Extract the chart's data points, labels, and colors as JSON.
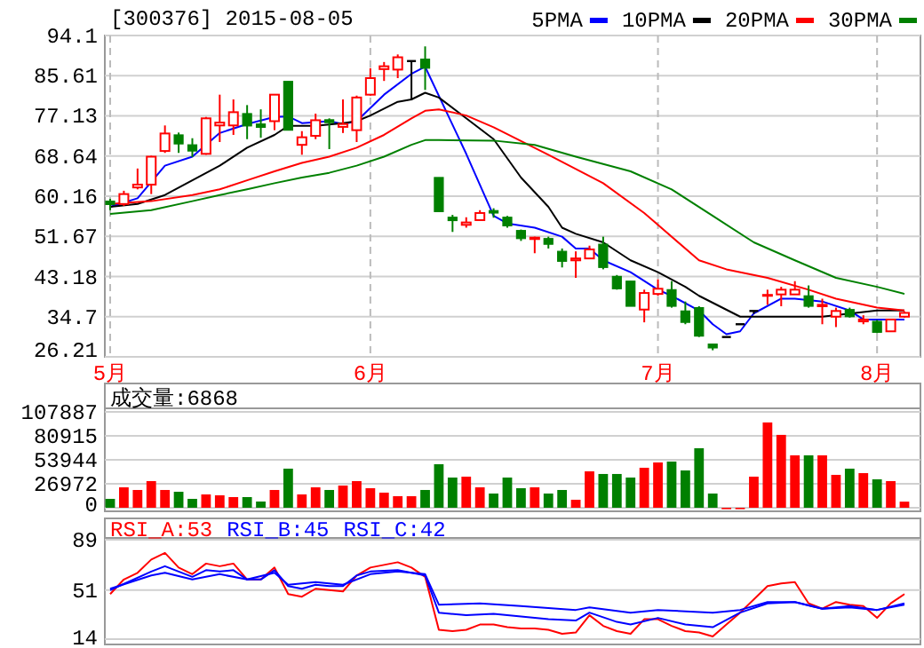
{
  "chart_data": [
    {
      "type": "candlestick",
      "title": "[300376] 2015-08-05",
      "categories": [
        "5月",
        null,
        null,
        null,
        null,
        null,
        null,
        null,
        null,
        null,
        null,
        null,
        null,
        null,
        null,
        null,
        null,
        null,
        null,
        "6月",
        null,
        null,
        null,
        null,
        null,
        null,
        null,
        null,
        null,
        null,
        null,
        null,
        null,
        null,
        null,
        null,
        null,
        null,
        null,
        null,
        "7月",
        null,
        null,
        null,
        null,
        null,
        null,
        null,
        null,
        null,
        null,
        null,
        null,
        null,
        null,
        null,
        "8月",
        null,
        null
      ],
      "ohlc": [
        [
          59.1,
          59.6,
          57.2,
          58.4
        ],
        [
          58.5,
          61.3,
          58.1,
          60.6
        ],
        [
          62.0,
          66.0,
          61.6,
          62.6
        ],
        [
          62.6,
          68.7,
          60.6,
          68.5
        ],
        [
          69.7,
          75.1,
          69.3,
          73.4
        ],
        [
          73.1,
          73.6,
          69.3,
          71.2
        ],
        [
          71.0,
          72.4,
          68.4,
          69.7
        ],
        [
          69.1,
          76.9,
          68.9,
          76.6
        ],
        [
          75.1,
          81.6,
          71.6,
          75.7
        ],
        [
          75.1,
          80.6,
          73.1,
          77.9
        ],
        [
          77.6,
          79.4,
          72.2,
          75.0
        ],
        [
          75.4,
          78.5,
          72.5,
          74.7
        ],
        [
          76.0,
          81.6,
          74.1,
          81.6
        ],
        [
          84.4,
          84.4,
          74.1,
          74.1
        ],
        [
          71.0,
          73.9,
          68.9,
          72.6
        ],
        [
          72.9,
          77.6,
          72.2,
          76.2
        ],
        [
          76.3,
          76.6,
          70.1,
          75.7
        ],
        [
          74.8,
          80.6,
          73.5,
          75.4
        ],
        [
          74.1,
          81.4,
          71.6,
          81.0
        ],
        [
          81.6,
          87.2,
          81.4,
          85.1
        ],
        [
          87.0,
          88.5,
          84.5,
          87.6
        ],
        [
          86.9,
          90.1,
          85.1,
          89.5
        ],
        [
          88.7,
          88.7,
          80.4,
          88.7
        ],
        [
          89.1,
          91.8,
          82.6,
          87.2
        ],
        [
          64.1,
          64.1,
          56.9,
          56.9
        ],
        [
          55.7,
          56.2,
          52.6,
          55.0
        ],
        [
          54.1,
          55.7,
          53.5,
          54.6
        ],
        [
          55.1,
          57.2,
          55.1,
          56.6
        ],
        [
          57.1,
          57.6,
          55.6,
          56.6
        ],
        [
          55.7,
          56.0,
          53.5,
          53.9
        ],
        [
          52.9,
          53.1,
          50.7,
          51.2
        ],
        [
          51.1,
          51.6,
          48.1,
          51.4
        ],
        [
          51.2,
          51.6,
          49.1,
          50.0
        ],
        [
          48.5,
          49.1,
          45.1,
          46.4
        ],
        [
          46.6,
          48.5,
          42.9,
          47.0
        ],
        [
          47.0,
          49.7,
          47.0,
          48.9
        ],
        [
          50.0,
          51.6,
          44.7,
          45.1
        ],
        [
          43.2,
          43.5,
          40.4,
          40.6
        ],
        [
          42.2,
          42.2,
          36.9,
          36.9
        ],
        [
          36.2,
          40.4,
          33.5,
          39.7
        ],
        [
          39.5,
          42.6,
          39.1,
          40.6
        ],
        [
          40.4,
          42.2,
          36.6,
          36.9
        ],
        [
          35.9,
          37.9,
          33.1,
          33.5
        ],
        [
          36.6,
          36.9,
          30.4,
          30.6
        ],
        [
          28.9,
          28.9,
          27.6,
          28.1
        ],
        [
          30.4,
          30.4,
          30.4,
          30.4
        ],
        [
          33.1,
          33.1,
          33.1,
          33.1
        ],
        [
          35.9,
          35.9,
          35.3,
          35.9
        ],
        [
          39.1,
          40.4,
          37.2,
          39.3
        ],
        [
          39.4,
          41.0,
          36.9,
          40.4
        ],
        [
          39.4,
          42.2,
          39.4,
          40.4
        ],
        [
          39.1,
          41.3,
          36.6,
          36.9
        ],
        [
          36.9,
          38.5,
          33.1,
          37.2
        ],
        [
          34.7,
          36.6,
          32.5,
          35.9
        ],
        [
          36.2,
          36.6,
          34.5,
          34.7
        ],
        [
          33.7,
          35.0,
          33.1,
          34.1
        ],
        [
          33.7,
          34.0,
          31.2,
          31.4
        ],
        [
          31.6,
          34.1,
          31.6,
          34.1
        ],
        [
          34.7,
          35.8,
          34.5,
          35.5
        ]
      ],
      "colors": [
        "#008000",
        "#ff0000",
        "#ff0000",
        "#ff0000",
        "#ff0000",
        "#008000",
        "#008000",
        "#ff0000",
        "#ff0000",
        "#ff0000",
        "#008000",
        "#008000",
        "#ff0000",
        "#008000",
        "#ff0000",
        "#ff0000",
        "#008000",
        "#ff0000",
        "#ff0000",
        "#ff0000",
        "#ff0000",
        "#ff0000",
        "#000000",
        "#008000",
        "#008000",
        "#008000",
        "#ff0000",
        "#ff0000",
        "#008000",
        "#008000",
        "#008000",
        "#ff0000",
        "#008000",
        "#008000",
        "#ff0000",
        "#ff0000",
        "#008000",
        "#008000",
        "#008000",
        "#ff0000",
        "#ff0000",
        "#008000",
        "#008000",
        "#008000",
        "#008000",
        "#000000",
        "#000000",
        "#000000",
        "#ff0000",
        "#ff0000",
        "#ff0000",
        "#008000",
        "#ff0000",
        "#ff0000",
        "#008000",
        "#ff0000",
        "#008000",
        "#ff0000",
        "#ff0000"
      ],
      "series": [
        {
          "name": "5PMA",
          "type": "line",
          "color": "#0000ff",
          "values": [
            57.9,
            null,
            59.7,
            null,
            66.6,
            null,
            68.5,
            null,
            73.5,
            null,
            75.4,
            null,
            76.9,
            77.0,
            75.6,
            null,
            76.0,
            75.4,
            76.0,
            null,
            81.6,
            null,
            86.0,
            87.5,
            null,
            null,
            69.1,
            null,
            56.0,
            54.4,
            null,
            53.5,
            null,
            51.6,
            49.1,
            49.1,
            46.6,
            null,
            44.1,
            null,
            40.4,
            39.1,
            null,
            36.0,
            33.1,
            31.0,
            31.6,
            35.4,
            null,
            38.5,
            38.5,
            null,
            37.9,
            null,
            36.0,
            34.1,
            null,
            null,
            34.1
          ]
        },
        {
          "name": "10PMA",
          "type": "line",
          "color": "#000000",
          "values": [
            57.9,
            null,
            58.5,
            null,
            60.4,
            null,
            63.5,
            null,
            66.6,
            null,
            70.4,
            null,
            73.1,
            75.0,
            null,
            75.0,
            null,
            75.6,
            76.0,
            77.2,
            null,
            80.1,
            80.6,
            82.0,
            81.0,
            null,
            76.6,
            null,
            72.2,
            null,
            64.1,
            null,
            57.9,
            53.5,
            52.2,
            null,
            50.4,
            null,
            46.6,
            null,
            44.1,
            null,
            41.0,
            39.1,
            null,
            null,
            34.7,
            null,
            null,
            null,
            null,
            null,
            34.7,
            null,
            null,
            null,
            36.0,
            null,
            36.0
          ]
        },
        {
          "name": "20PMA",
          "type": "line",
          "color": "#ff0000",
          "values": [
            58.5,
            null,
            null,
            59.1,
            null,
            null,
            60.4,
            null,
            61.6,
            null,
            63.5,
            null,
            65.4,
            null,
            67.2,
            null,
            68.5,
            null,
            70.4,
            null,
            73.1,
            null,
            76.6,
            78.2,
            78.5,
            null,
            77.2,
            null,
            74.7,
            null,
            null,
            null,
            68.9,
            null,
            null,
            null,
            62.9,
            null,
            null,
            56.6,
            null,
            null,
            null,
            46.6,
            null,
            44.7,
            null,
            null,
            42.9,
            null,
            null,
            40.4,
            null,
            38.5,
            null,
            null,
            36.6,
            null,
            36.0
          ]
        },
        {
          "name": "30PMA",
          "type": "line",
          "color": "#008000",
          "values": [
            56.4,
            null,
            null,
            57.2,
            null,
            null,
            59.1,
            null,
            60.4,
            null,
            61.6,
            null,
            62.9,
            null,
            64.1,
            null,
            65.1,
            null,
            66.6,
            null,
            68.5,
            null,
            71.0,
            72.0,
            72.0,
            null,
            null,
            null,
            71.9,
            null,
            null,
            71.0,
            null,
            null,
            68.5,
            null,
            null,
            null,
            65.4,
            null,
            null,
            61.6,
            null,
            null,
            56.0,
            null,
            null,
            50.4,
            null,
            null,
            46.6,
            null,
            null,
            42.9,
            null,
            null,
            41.0,
            null,
            39.5
          ]
        }
      ],
      "ylim": [
        26.21,
        94.1
      ],
      "yticks": [
        26.21,
        34.7,
        43.18,
        51.67,
        60.16,
        68.64,
        77.13,
        85.61,
        94.1
      ],
      "grid": true,
      "legend": "top right"
    },
    {
      "type": "bar",
      "title": "成交量:6868",
      "categories": [
        null,
        null,
        null,
        null,
        null,
        null,
        null,
        null,
        null,
        null,
        null,
        null,
        null,
        null,
        null,
        null,
        null,
        null,
        null,
        null,
        null,
        null,
        null,
        null,
        null,
        null,
        null,
        null,
        null,
        null,
        null,
        null,
        null,
        null,
        null,
        null,
        null,
        null,
        null,
        null,
        null,
        null,
        null,
        null,
        null,
        null,
        null,
        null,
        null,
        null,
        null,
        null,
        null,
        null,
        null,
        null,
        null,
        null,
        null
      ],
      "values": [
        10000,
        23000,
        20000,
        30000,
        20000,
        18000,
        10000,
        15000,
        14000,
        12000,
        12000,
        7000,
        20000,
        44000,
        15000,
        23000,
        20000,
        25000,
        30000,
        22000,
        17000,
        13000,
        13000,
        20000,
        49000,
        34000,
        35000,
        23000,
        16000,
        34000,
        22000,
        23000,
        16000,
        20000,
        9000,
        41000,
        38000,
        38000,
        34000,
        45000,
        51000,
        52000,
        42000,
        67000,
        16000,
        0,
        0,
        35000,
        96000,
        82000,
        59000,
        59000,
        59000,
        37000,
        44000,
        39000,
        32000,
        30000,
        6868
      ],
      "colors": [
        "#008000",
        "#ff0000",
        "#ff0000",
        "#ff0000",
        "#ff0000",
        "#008000",
        "#008000",
        "#ff0000",
        "#ff0000",
        "#ff0000",
        "#008000",
        "#008000",
        "#ff0000",
        "#008000",
        "#ff0000",
        "#ff0000",
        "#008000",
        "#ff0000",
        "#ff0000",
        "#ff0000",
        "#ff0000",
        "#ff0000",
        "#ff0000",
        "#008000",
        "#008000",
        "#008000",
        "#ff0000",
        "#ff0000",
        "#008000",
        "#008000",
        "#008000",
        "#ff0000",
        "#008000",
        "#008000",
        "#ff0000",
        "#ff0000",
        "#008000",
        "#008000",
        "#008000",
        "#ff0000",
        "#ff0000",
        "#008000",
        "#008000",
        "#008000",
        "#008000",
        "#ff0000",
        "#ff0000",
        "#ff0000",
        "#ff0000",
        "#ff0000",
        "#ff0000",
        "#008000",
        "#ff0000",
        "#ff0000",
        "#008000",
        "#ff0000",
        "#008000",
        "#ff0000",
        "#ff0000"
      ],
      "ylim": [
        0,
        107887
      ],
      "yticks": [
        0,
        26972,
        53944,
        80915,
        107887
      ],
      "grid": "y",
      "tick_labels": "y"
    },
    {
      "type": "line",
      "categories": [
        null,
        null,
        null,
        null,
        null,
        null,
        null,
        null,
        null,
        null,
        null,
        null,
        null,
        null,
        null,
        null,
        null,
        null,
        null,
        null,
        null,
        null,
        null,
        null,
        null,
        null,
        null,
        null,
        null,
        null,
        null,
        null,
        null,
        null,
        null,
        null,
        null,
        null,
        null,
        null,
        null,
        null,
        null,
        null,
        null,
        null,
        null,
        null,
        null,
        null,
        null,
        null,
        null,
        null,
        null,
        null,
        null,
        null,
        null
      ],
      "series": [
        {
          "name": "RSI_A:53",
          "color": "#ff0000",
          "values": [
            48,
            59,
            64,
            74,
            79,
            68,
            63,
            71,
            69,
            71,
            59,
            59,
            68,
            48,
            46,
            52,
            51,
            50,
            62,
            68,
            70,
            72,
            68,
            61,
            21,
            20,
            21,
            25,
            25,
            23,
            22,
            22,
            21,
            18,
            19,
            32,
            24,
            20,
            18,
            29,
            29,
            24,
            20,
            19,
            16,
            25,
            34,
            44,
            54,
            56,
            57,
            41,
            37,
            42,
            40,
            39,
            30,
            41,
            48
          ]
        },
        {
          "name": "RSI_B:45",
          "color": "#0000ff",
          "values": [
            51,
            null,
            null,
            65,
            69,
            65,
            61,
            66,
            65,
            66,
            59,
            59,
            66,
            54,
            52,
            55,
            54,
            54,
            62,
            65,
            null,
            66,
            null,
            62,
            34,
            null,
            32,
            null,
            33,
            null,
            31,
            null,
            29,
            null,
            28,
            34,
            null,
            27,
            25,
            null,
            30,
            null,
            25,
            null,
            23,
            null,
            34,
            null,
            41,
            null,
            42,
            null,
            37,
            null,
            39,
            null,
            36,
            null,
            41
          ]
        },
        {
          "name": "RSI_C:42",
          "color": "#0000ff",
          "values": [
            52,
            null,
            null,
            62,
            64,
            null,
            59,
            null,
            63,
            null,
            59,
            null,
            64,
            55,
            null,
            57,
            null,
            55,
            null,
            63,
            null,
            65,
            null,
            63,
            40,
            null,
            null,
            41,
            null,
            null,
            39,
            null,
            null,
            null,
            36,
            38,
            null,
            null,
            34,
            null,
            36,
            null,
            null,
            null,
            34,
            null,
            36,
            null,
            42,
            null,
            42,
            null,
            37,
            null,
            38,
            null,
            36,
            null,
            40
          ]
        }
      ],
      "ylim": [
        14,
        89
      ],
      "yticks": [
        14,
        51,
        89
      ],
      "grid": "y",
      "legend": "top left",
      "tick_labels": "y"
    }
  ]
}
